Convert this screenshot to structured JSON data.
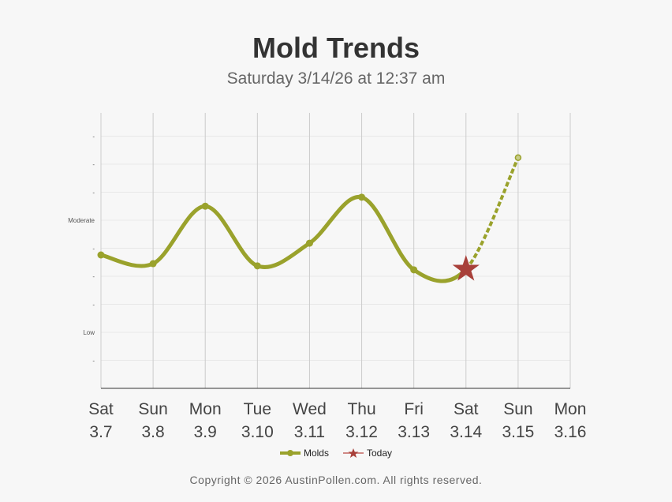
{
  "chart_data": {
    "type": "line",
    "title": "Mold Trends",
    "subtitle": "Saturday 3/14/26 at 12:37 am",
    "categories": [
      {
        "day": "Sat",
        "date": "3.7"
      },
      {
        "day": "Sun",
        "date": "3.8"
      },
      {
        "day": "Mon",
        "date": "3.9"
      },
      {
        "day": "Tue",
        "date": "3.10"
      },
      {
        "day": "Wed",
        "date": "3.11"
      },
      {
        "day": "Thu",
        "date": "3.12"
      },
      {
        "day": "Fri",
        "date": "3.13"
      },
      {
        "day": "Sat",
        "date": "3.14"
      },
      {
        "day": "Sun",
        "date": "3.15"
      },
      {
        "day": "Mon",
        "date": "3.16"
      }
    ],
    "y_ticks": [
      {
        "value": 1,
        "label": "-"
      },
      {
        "value": 2,
        "label": "Low"
      },
      {
        "value": 3,
        "label": "-"
      },
      {
        "value": 4,
        "label": "-"
      },
      {
        "value": 5,
        "label": "-"
      },
      {
        "value": 6,
        "label": "Moderate"
      },
      {
        "value": 7,
        "label": "-"
      },
      {
        "value": 8,
        "label": "-"
      },
      {
        "value": 9,
        "label": "-"
      }
    ],
    "ylim": [
      0,
      9.83
    ],
    "series": [
      {
        "name": "Molds",
        "color": "#9aa22c",
        "values": [
          4.76,
          4.45,
          6.5,
          4.37,
          5.18,
          6.82,
          4.23,
          4.25,
          8.23,
          null
        ],
        "forecast_from_index": 7
      }
    ],
    "today_index": 7,
    "today_color": "#a8403a",
    "legend": [
      {
        "label": "Molds"
      },
      {
        "label": "Today"
      }
    ],
    "legend_position": "bottom"
  },
  "footer": {
    "copyright": "Copyright © 2026 AustinPollen.com.  All rights reserved."
  }
}
